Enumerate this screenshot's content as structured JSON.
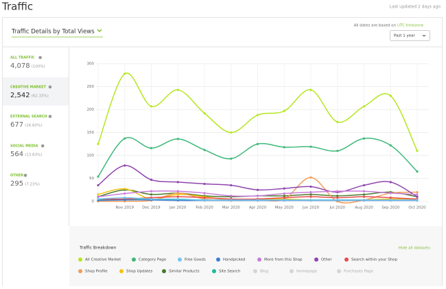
{
  "header": {
    "title": "Traffic",
    "updated": "Last updated 2 days ago"
  },
  "panel": {
    "title": "Traffic Details by Total Views",
    "timezone_note": "All dates are based on",
    "timezone_link": "UTC timezone",
    "period": "Past 1 year"
  },
  "sidebar": [
    {
      "label": "ALL TRAFFIC",
      "value": "4,078",
      "pct": "(100%)"
    },
    {
      "label": "CREATIVE MARKET",
      "value": "2,542",
      "pct": "(62.33%)"
    },
    {
      "label": "EXTERNAL SEARCH",
      "value": "677",
      "pct": "(16.60%)"
    },
    {
      "label": "SOCIAL MEDIA",
      "value": "564",
      "pct": "(13.83%)"
    },
    {
      "label": "OTHER",
      "value": "295",
      "pct": "(7.23%)"
    }
  ],
  "breakdown": {
    "title": "Traffic Breakdown",
    "hide_all": "Hide all datasets"
  },
  "chart_data": {
    "type": "line",
    "smooth": true,
    "categories": [
      null,
      "Nov 2019",
      "Dec 2019",
      "Jan 2020",
      "Feb 2020",
      "Mar 2020",
      "Apr 2020",
      "May 2020",
      "Jun 2020",
      "Jul 2020",
      "Aug 2020",
      "Sep 2020",
      "Oct 2020"
    ],
    "ylim": [
      0,
      300
    ],
    "yticks": [
      0,
      50,
      100,
      150,
      200,
      250,
      300
    ],
    "grid": true,
    "series": [
      {
        "name": "All Creative Market",
        "color": "#b5e61d",
        "values": [
          125,
          278,
          207,
          243,
          192,
          150,
          188,
          197,
          243,
          173,
          207,
          230,
          110
        ]
      },
      {
        "name": "Category Page",
        "color": "#3cb878",
        "values": [
          54,
          137,
          116,
          136,
          112,
          93,
          125,
          118,
          119,
          110,
          137,
          122,
          65
        ]
      },
      {
        "name": "Free Goods",
        "color": "#74c7f0",
        "values": [
          5,
          8,
          5,
          5,
          3,
          3,
          3,
          3,
          3,
          3,
          3,
          3,
          3
        ]
      },
      {
        "name": "Handpicked",
        "color": "#3b7fd0",
        "values": [
          2,
          3,
          3,
          2,
          2,
          2,
          2,
          2,
          2,
          2,
          2,
          2,
          2
        ]
      },
      {
        "name": "More from this Shop",
        "color": "#c77dda",
        "values": [
          10,
          17,
          22,
          22,
          18,
          12,
          12,
          17,
          20,
          22,
          22,
          18,
          15
        ]
      },
      {
        "name": "Other",
        "color": "#8e44ad",
        "values": [
          35,
          78,
          47,
          42,
          38,
          35,
          25,
          28,
          32,
          20,
          35,
          42,
          10
        ]
      },
      {
        "name": "Search within your Shop",
        "color": "#e84c4c",
        "values": [
          5,
          5,
          8,
          10,
          8,
          5,
          5,
          8,
          10,
          8,
          10,
          8,
          5
        ]
      },
      {
        "name": "Shop Profile",
        "color": "#f39c5a",
        "values": [
          0,
          0,
          2,
          18,
          5,
          2,
          3,
          5,
          52,
          0,
          3,
          18,
          20
        ]
      },
      {
        "name": "Shop Updates",
        "color": "#f1c40f",
        "values": [
          15,
          27,
          5,
          15,
          10,
          3,
          5,
          5,
          3,
          2,
          3,
          5,
          3
        ]
      },
      {
        "name": "Similar Products",
        "color": "#4a7a2c",
        "values": [
          10,
          25,
          15,
          18,
          12,
          10,
          12,
          12,
          15,
          12,
          15,
          20,
          10
        ]
      },
      {
        "name": "Site Search",
        "color": "#1abc9c",
        "values": [
          3,
          5,
          5,
          3,
          3,
          3,
          3,
          3,
          3,
          3,
          3,
          3,
          3
        ]
      }
    ],
    "hidden_series": [
      "Blog",
      "Homepage",
      "Purchases Page"
    ],
    "hidden_color": "#d5d5d5"
  }
}
